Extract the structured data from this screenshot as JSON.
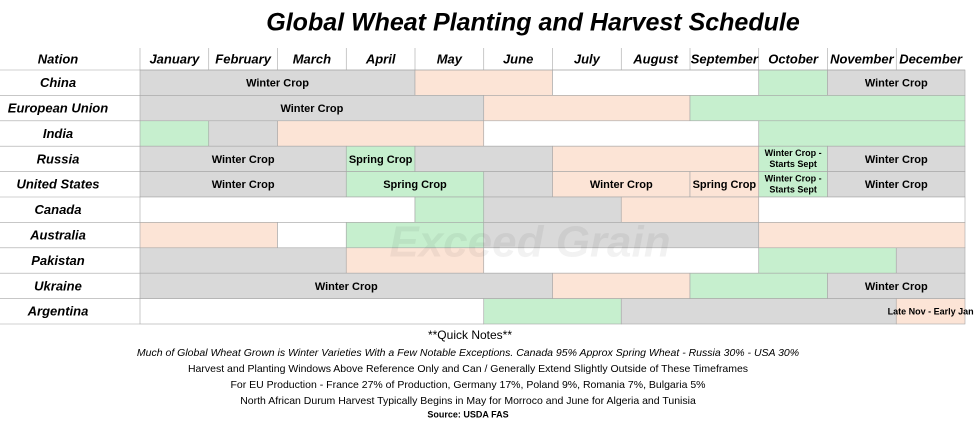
{
  "header": {
    "title": "Global Wheat Planting and Harvest Schedule",
    "nation_label": "Nation"
  },
  "months": [
    "January",
    "February",
    "March",
    "April",
    "May",
    "June",
    "July",
    "August",
    "September",
    "October",
    "November",
    "December"
  ],
  "colors": {
    "gray": "#d9d9d9",
    "peach": "#fce4d6",
    "green": "#c6efce",
    "white": "#ffffff"
  },
  "table": {
    "rows": [
      {
        "nation": "China",
        "cells": [
          {
            "span": 4,
            "fill": "gray",
            "label": "Winter Crop"
          },
          {
            "span": 2,
            "fill": "peach"
          },
          {
            "span": 3,
            "fill": "white"
          },
          {
            "span": 1,
            "fill": "green"
          },
          {
            "span": 2,
            "fill": "gray",
            "label": "Winter Crop"
          }
        ]
      },
      {
        "nation": "European Union",
        "cells": [
          {
            "span": 5,
            "fill": "gray",
            "label": "Winter Crop"
          },
          {
            "span": 3,
            "fill": "peach"
          },
          {
            "span": 4,
            "fill": "green"
          }
        ]
      },
      {
        "nation": "India",
        "cells": [
          {
            "span": 1,
            "fill": "green"
          },
          {
            "span": 1,
            "fill": "gray"
          },
          {
            "span": 3,
            "fill": "peach"
          },
          {
            "span": 4,
            "fill": "white"
          },
          {
            "span": 3,
            "fill": "green"
          }
        ]
      },
      {
        "nation": "Russia",
        "cells": [
          {
            "span": 3,
            "fill": "gray",
            "label": "Winter Crop"
          },
          {
            "span": 1,
            "fill": "green",
            "label": "Spring Crop"
          },
          {
            "span": 2,
            "fill": "gray"
          },
          {
            "span": 3,
            "fill": "peach"
          },
          {
            "span": 1,
            "fill": "green",
            "label": "Winter Crop - Starts Sept"
          },
          {
            "span": 2,
            "fill": "gray",
            "label": "Winter Crop"
          }
        ]
      },
      {
        "nation": "United States",
        "cells": [
          {
            "span": 3,
            "fill": "gray",
            "label": "Winter Crop"
          },
          {
            "span": 2,
            "fill": "green",
            "label": "Spring Crop"
          },
          {
            "span": 1,
            "fill": "gray"
          },
          {
            "span": 2,
            "fill": "peach",
            "label": "Winter Crop"
          },
          {
            "span": 1,
            "fill": "peach",
            "label": "Spring Crop"
          },
          {
            "span": 1,
            "fill": "green",
            "label": "Winter Crop - Starts Sept"
          },
          {
            "span": 2,
            "fill": "gray",
            "label": "Winter Crop"
          }
        ]
      },
      {
        "nation": "Canada",
        "cells": [
          {
            "span": 4,
            "fill": "white"
          },
          {
            "span": 1,
            "fill": "green"
          },
          {
            "span": 2,
            "fill": "gray"
          },
          {
            "span": 2,
            "fill": "peach"
          },
          {
            "span": 3,
            "fill": "white"
          }
        ]
      },
      {
        "nation": "Australia",
        "cells": [
          {
            "span": 2,
            "fill": "peach"
          },
          {
            "span": 1,
            "fill": "white"
          },
          {
            "span": 2,
            "fill": "green"
          },
          {
            "span": 4,
            "fill": "gray"
          },
          {
            "span": 3,
            "fill": "peach"
          }
        ]
      },
      {
        "nation": "Pakistan",
        "cells": [
          {
            "span": 3,
            "fill": "gray"
          },
          {
            "span": 2,
            "fill": "peach"
          },
          {
            "span": 4,
            "fill": "white"
          },
          {
            "span": 2,
            "fill": "green"
          },
          {
            "span": 1,
            "fill": "gray"
          }
        ]
      },
      {
        "nation": "Ukraine",
        "cells": [
          {
            "span": 6,
            "fill": "gray",
            "label": "Winter Crop"
          },
          {
            "span": 2,
            "fill": "peach"
          },
          {
            "span": 2,
            "fill": "green"
          },
          {
            "span": 2,
            "fill": "gray",
            "label": "Winter Crop"
          }
        ]
      },
      {
        "nation": "Argentina",
        "cells": [
          {
            "span": 5,
            "fill": "white"
          },
          {
            "span": 2,
            "fill": "green"
          },
          {
            "span": 4,
            "fill": "gray"
          },
          {
            "span": 1,
            "fill": "peach",
            "label": "Late Nov - Early Jan"
          }
        ]
      }
    ]
  },
  "watermark": "Exceed Grain",
  "notes": {
    "heading": "**Quick Notes**",
    "lines": [
      "Much of Global Wheat Grown is Winter Varieties With a Few Notable Exceptions. Canada 95% Approx Spring Wheat - Russia 30% - USA 30%",
      "Harvest and Planting Windows Above Reference Only and Can / Generally Extend Slightly Outside of These Timeframes",
      "For EU Production - France 27% of Production, Germany 17%, Poland 9%, Romania 7%, Bulgaria 5%",
      "North African Durum Harvest Typically Begins in May for Morroco and June for Algeria and Tunisia"
    ],
    "source": "Source: USDA FAS"
  }
}
